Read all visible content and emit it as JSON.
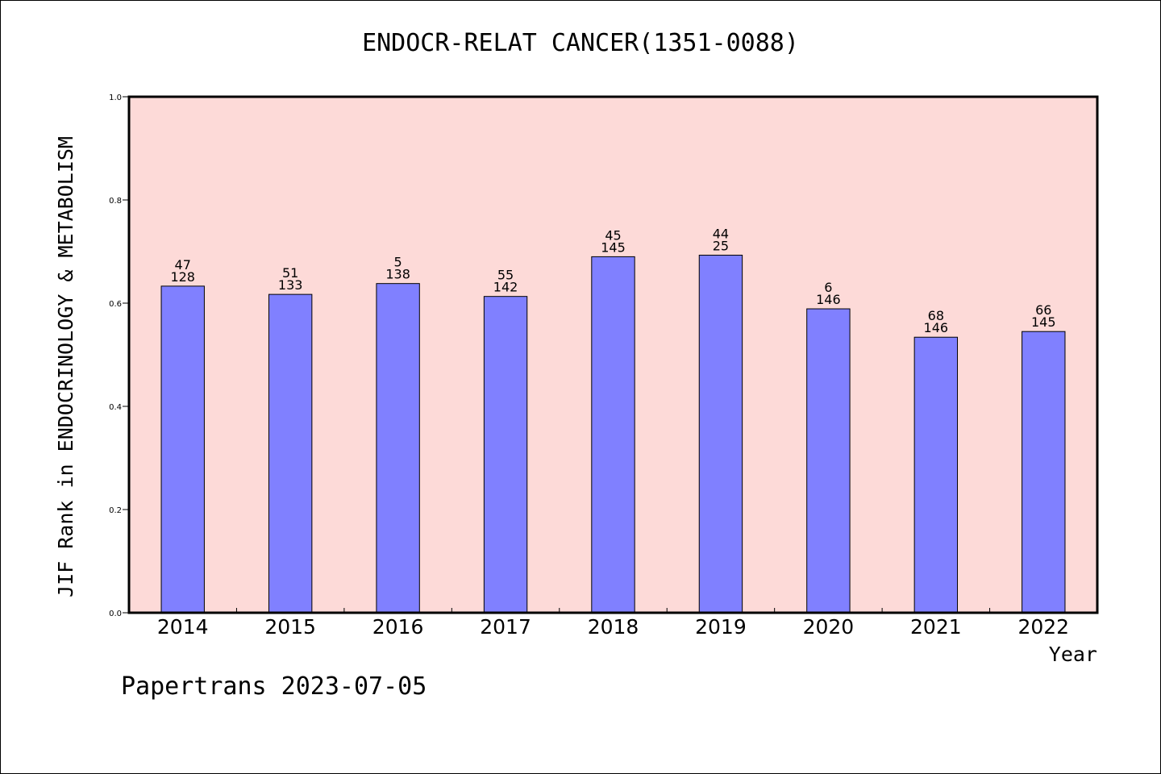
{
  "chart_data": {
    "type": "bar",
    "title": "ENDOCR-RELAT CANCER(1351-0088)",
    "xlabel": "Year",
    "ylabel": "JIF Rank in ENDOCRINOLOGY & METABOLISM",
    "ylim": [
      0,
      1.0
    ],
    "yticks": [
      "0.0",
      "0.2",
      "0.4",
      "0.6",
      "0.8",
      "1.0"
    ],
    "categories": [
      "2014",
      "2015",
      "2016",
      "2017",
      "2018",
      "2019",
      "2020",
      "2021",
      "2022"
    ],
    "values": [
      0.633,
      0.617,
      0.638,
      0.613,
      0.69,
      0.693,
      0.589,
      0.534,
      0.545
    ],
    "labels_top": [
      "47",
      "51",
      "5",
      "55",
      "45",
      "44",
      "6",
      "68",
      "66"
    ],
    "labels_bottom": [
      "128",
      "133",
      "138",
      "142",
      "145",
      "25",
      "146",
      "146",
      "145"
    ],
    "grid": false,
    "colors": {
      "plot_bg": "#FDDAD8",
      "bar": "#8080FF"
    }
  },
  "footer": "Papertrans 2023-07-05"
}
